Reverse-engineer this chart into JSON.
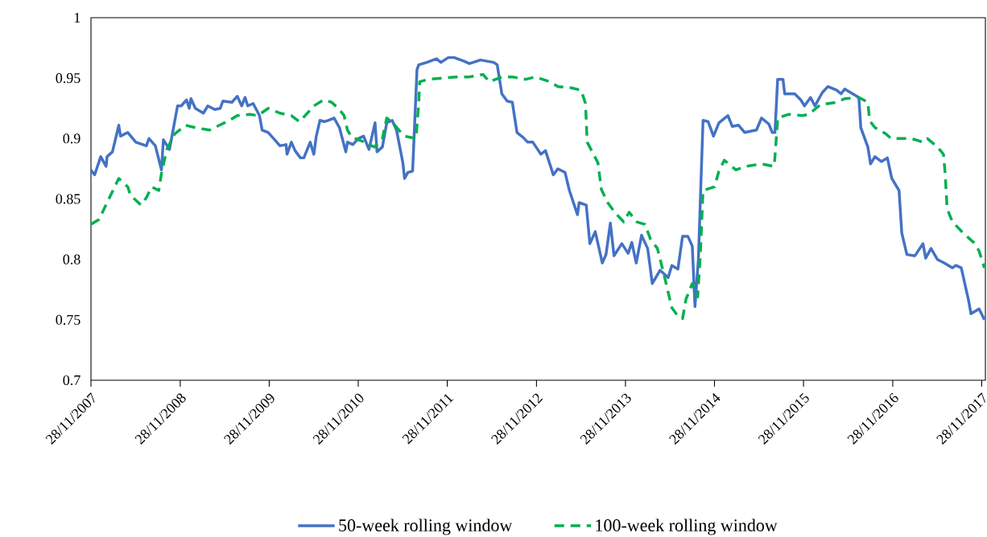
{
  "chart_data": {
    "type": "line",
    "xlim": [
      "2007-11-28",
      "2017-12-13"
    ],
    "ylim": [
      0.7,
      1
    ],
    "xticks": [
      {
        "value": "2007-11-28",
        "label": "28/11/2007"
      },
      {
        "value": "2008-11-28",
        "label": "28/11/2008"
      },
      {
        "value": "2009-11-28",
        "label": "28/11/2009"
      },
      {
        "value": "2010-11-28",
        "label": "28/11/2010"
      },
      {
        "value": "2011-11-28",
        "label": "28/11/2011"
      },
      {
        "value": "2012-11-28",
        "label": "28/11/2012"
      },
      {
        "value": "2013-11-28",
        "label": "28/11/2013"
      },
      {
        "value": "2014-11-28",
        "label": "28/11/2014"
      },
      {
        "value": "2015-11-28",
        "label": "28/11/2015"
      },
      {
        "value": "2016-11-28",
        "label": "28/11/2016"
      },
      {
        "value": "2017-11-28",
        "label": "28/11/2017"
      }
    ],
    "yticks": [
      0.7,
      0.75,
      0.8,
      0.85,
      0.9,
      0.95,
      1
    ],
    "grid": false,
    "legend": "bottom",
    "marker": "none",
    "series": [
      {
        "name": "50-week rolling window",
        "color": "#4472c4",
        "line_style": "solid",
        "x": [
          "2007-11-28",
          "2007-12-13",
          "2008-01-07",
          "2008-01-29",
          "2008-02-02",
          "2008-02-24",
          "2008-03-21",
          "2008-03-28",
          "2008-04-27",
          "2008-05-30",
          "2008-07-12",
          "2008-07-23",
          "2008-08-18",
          "2008-09-12",
          "2008-09-20",
          "2008-10-15",
          "2008-11-17",
          "2008-12-02",
          "2008-12-24",
          "2009-01-04",
          "2009-01-11",
          "2009-01-29",
          "2009-03-03",
          "2009-03-21",
          "2009-04-19",
          "2009-05-11",
          "2009-05-22",
          "2009-06-28",
          "2009-07-20",
          "2009-08-07",
          "2009-08-21",
          "2009-09-01",
          "2009-09-23",
          "2009-10-19",
          "2009-10-30",
          "2009-11-24",
          "2009-12-16",
          "2010-01-11",
          "2010-02-05",
          "2010-02-09",
          "2010-02-27",
          "2010-03-14",
          "2010-04-05",
          "2010-04-19",
          "2010-05-15",
          "2010-05-30",
          "2010-06-09",
          "2010-06-24",
          "2010-07-12",
          "2010-07-27",
          "2010-08-21",
          "2010-09-12",
          "2010-10-08",
          "2010-10-15",
          "2010-11-06",
          "2010-11-28",
          "2010-12-20",
          "2011-01-11",
          "2011-02-05",
          "2011-02-13",
          "2011-03-07",
          "2011-03-25",
          "2011-04-16",
          "2011-05-04",
          "2011-05-30",
          "2011-06-06",
          "2011-06-20",
          "2011-07-09",
          "2011-07-27",
          "2011-08-03",
          "2011-09-05",
          "2011-10-15",
          "2011-11-02",
          "2011-12-02",
          "2011-12-27",
          "2012-02-05",
          "2012-02-27",
          "2012-04-12",
          "2012-06-06",
          "2012-06-20",
          "2012-07-09",
          "2012-07-31",
          "2012-08-21",
          "2012-09-09",
          "2012-10-04",
          "2012-10-23",
          "2012-11-13",
          "2012-12-16",
          "2013-01-04",
          "2013-02-05",
          "2013-02-24",
          "2013-03-25",
          "2013-04-12",
          "2013-05-15",
          "2013-05-22",
          "2013-06-20",
          "2013-07-05",
          "2013-07-27",
          "2013-08-25",
          "2013-09-09",
          "2013-09-27",
          "2013-10-12",
          "2013-11-13",
          "2013-12-09",
          "2013-12-24",
          "2014-01-11",
          "2014-02-02",
          "2014-02-27",
          "2014-03-18",
          "2014-04-19",
          "2014-05-22",
          "2014-06-06",
          "2014-07-01",
          "2014-07-20",
          "2014-08-11",
          "2014-08-29",
          "2014-09-09",
          "2014-09-23",
          "2014-10-12",
          "2014-11-02",
          "2014-11-24",
          "2014-12-16",
          "2015-01-22",
          "2015-02-09",
          "2015-03-07",
          "2015-04-01",
          "2015-05-19",
          "2015-06-09",
          "2015-07-09",
          "2015-07-23",
          "2015-08-03",
          "2015-08-14",
          "2015-09-05",
          "2015-09-12",
          "2015-10-23",
          "2015-11-17",
          "2015-12-02",
          "2015-12-27",
          "2016-01-14",
          "2016-02-13",
          "2016-03-07",
          "2016-04-12",
          "2016-04-30",
          "2016-05-15",
          "2016-06-17",
          "2016-07-12",
          "2016-07-20",
          "2016-08-18",
          "2016-08-29",
          "2016-09-16",
          "2016-10-12",
          "2016-11-06",
          "2016-11-24",
          "2016-12-24",
          "2017-01-04",
          "2017-01-25",
          "2017-02-27",
          "2017-04-01",
          "2017-04-12",
          "2017-05-04",
          "2017-05-30",
          "2017-06-28",
          "2017-07-31",
          "2017-08-14",
          "2017-09-05",
          "2017-10-04",
          "2017-10-15",
          "2017-11-17",
          "2017-12-09"
        ],
        "values": [
          0.874,
          0.87,
          0.885,
          0.877,
          0.885,
          0.889,
          0.911,
          0.902,
          0.905,
          0.897,
          0.894,
          0.9,
          0.894,
          0.874,
          0.899,
          0.891,
          0.927,
          0.927,
          0.932,
          0.925,
          0.933,
          0.925,
          0.921,
          0.927,
          0.924,
          0.925,
          0.931,
          0.93,
          0.935,
          0.927,
          0.934,
          0.927,
          0.929,
          0.919,
          0.907,
          0.905,
          0.9,
          0.894,
          0.895,
          0.887,
          0.897,
          0.89,
          0.884,
          0.884,
          0.897,
          0.887,
          0.902,
          0.915,
          0.914,
          0.915,
          0.917,
          0.909,
          0.889,
          0.897,
          0.895,
          0.9,
          0.902,
          0.891,
          0.913,
          0.889,
          0.893,
          0.913,
          0.915,
          0.907,
          0.88,
          0.867,
          0.872,
          0.873,
          0.957,
          0.961,
          0.963,
          0.966,
          0.963,
          0.967,
          0.967,
          0.964,
          0.962,
          0.965,
          0.963,
          0.961,
          0.937,
          0.931,
          0.93,
          0.905,
          0.901,
          0.897,
          0.897,
          0.887,
          0.89,
          0.87,
          0.875,
          0.872,
          0.857,
          0.837,
          0.847,
          0.845,
          0.813,
          0.823,
          0.797,
          0.804,
          0.83,
          0.803,
          0.813,
          0.805,
          0.814,
          0.797,
          0.82,
          0.809,
          0.78,
          0.791,
          0.785,
          0.795,
          0.792,
          0.819,
          0.819,
          0.811,
          0.761,
          0.8,
          0.915,
          0.914,
          0.902,
          0.913,
          0.919,
          0.91,
          0.911,
          0.905,
          0.907,
          0.917,
          0.912,
          0.905,
          0.905,
          0.949,
          0.949,
          0.937,
          0.937,
          0.932,
          0.927,
          0.934,
          0.927,
          0.938,
          0.943,
          0.94,
          0.937,
          0.941,
          0.937,
          0.934,
          0.909,
          0.893,
          0.879,
          0.885,
          0.881,
          0.884,
          0.867,
          0.857,
          0.822,
          0.804,
          0.803,
          0.813,
          0.801,
          0.809,
          0.8,
          0.797,
          0.793,
          0.795,
          0.793,
          0.767,
          0.755,
          0.759,
          0.75
        ]
      },
      {
        "name": "100-week rolling window",
        "color": "#00b050",
        "line_style": "dashed",
        "x": [
          "2007-11-28",
          "2007-12-31",
          "2008-02-02",
          "2008-03-21",
          "2008-04-27",
          "2008-05-08",
          "2008-06-20",
          "2008-07-12",
          "2008-08-03",
          "2008-09-01",
          "2008-09-12",
          "2008-10-04",
          "2008-11-06",
          "2008-12-20",
          "2009-01-29",
          "2009-03-28",
          "2009-05-08",
          "2009-06-17",
          "2009-07-20",
          "2009-09-09",
          "2009-10-12",
          "2009-11-24",
          "2010-01-11",
          "2010-02-27",
          "2010-04-01",
          "2010-05-08",
          "2010-05-30",
          "2010-07-09",
          "2010-08-11",
          "2010-09-12",
          "2010-10-01",
          "2010-10-15",
          "2010-11-02",
          "2010-12-24",
          "2011-02-02",
          "2011-03-07",
          "2011-03-25",
          "2011-04-19",
          "2011-05-22",
          "2011-06-06",
          "2011-07-23",
          "2011-08-03",
          "2011-08-07",
          "2011-09-12",
          "2011-11-10",
          "2012-01-04",
          "2012-02-27",
          "2012-04-23",
          "2012-05-19",
          "2012-07-09",
          "2012-08-21",
          "2012-10-15",
          "2012-11-24",
          "2013-01-22",
          "2013-02-24",
          "2013-04-19",
          "2013-05-30",
          "2013-06-17",
          "2013-06-24",
          "2013-07-20",
          "2013-08-07",
          "2013-08-21",
          "2013-09-16",
          "2013-10-19",
          "2013-11-21",
          "2013-12-13",
          "2014-01-14",
          "2014-02-16",
          "2014-03-10",
          "2014-04-08",
          "2014-04-23",
          "2014-05-15",
          "2014-06-06",
          "2014-06-24",
          "2014-07-20",
          "2014-08-03",
          "2014-08-29",
          "2014-09-20",
          "2014-10-01",
          "2014-10-12",
          "2014-11-28",
          "2014-12-16",
          "2015-01-07",
          "2015-02-24",
          "2015-04-05",
          "2015-06-09",
          "2015-07-31",
          "2015-08-11",
          "2015-08-14",
          "2015-09-27",
          "2015-11-24",
          "2015-12-20",
          "2016-02-05",
          "2016-04-12",
          "2016-05-15",
          "2016-07-12",
          "2016-08-18",
          "2016-08-25",
          "2016-09-16",
          "2016-10-30",
          "2016-11-21",
          "2017-01-04",
          "2017-02-13",
          "2017-04-01",
          "2017-04-19",
          "2017-05-30",
          "2017-06-24",
          "2017-07-01",
          "2017-07-09",
          "2017-07-31",
          "2017-09-12",
          "2017-10-26",
          "2017-11-17",
          "2017-12-09"
        ],
        "values": [
          0.829,
          0.833,
          0.847,
          0.867,
          0.86,
          0.853,
          0.845,
          0.851,
          0.86,
          0.857,
          0.871,
          0.891,
          0.904,
          0.911,
          0.909,
          0.907,
          0.911,
          0.915,
          0.919,
          0.92,
          0.919,
          0.925,
          0.921,
          0.919,
          0.914,
          0.922,
          0.927,
          0.932,
          0.93,
          0.924,
          0.919,
          0.907,
          0.901,
          0.897,
          0.893,
          0.9,
          0.917,
          0.913,
          0.905,
          0.902,
          0.9,
          0.929,
          0.947,
          0.949,
          0.95,
          0.951,
          0.951,
          0.953,
          0.947,
          0.951,
          0.951,
          0.949,
          0.951,
          0.947,
          0.943,
          0.942,
          0.94,
          0.929,
          0.897,
          0.887,
          0.88,
          0.858,
          0.847,
          0.838,
          0.831,
          0.839,
          0.831,
          0.829,
          0.817,
          0.809,
          0.797,
          0.779,
          0.76,
          0.755,
          0.751,
          0.767,
          0.78,
          0.769,
          0.804,
          0.857,
          0.86,
          0.873,
          0.882,
          0.874,
          0.877,
          0.879,
          0.877,
          0.907,
          0.917,
          0.92,
          0.919,
          0.92,
          0.928,
          0.93,
          0.933,
          0.934,
          0.93,
          0.915,
          0.909,
          0.904,
          0.9,
          0.9,
          0.9,
          0.897,
          0.9,
          0.893,
          0.887,
          0.871,
          0.842,
          0.831,
          0.822,
          0.814,
          0.807,
          0.793
        ]
      }
    ]
  }
}
